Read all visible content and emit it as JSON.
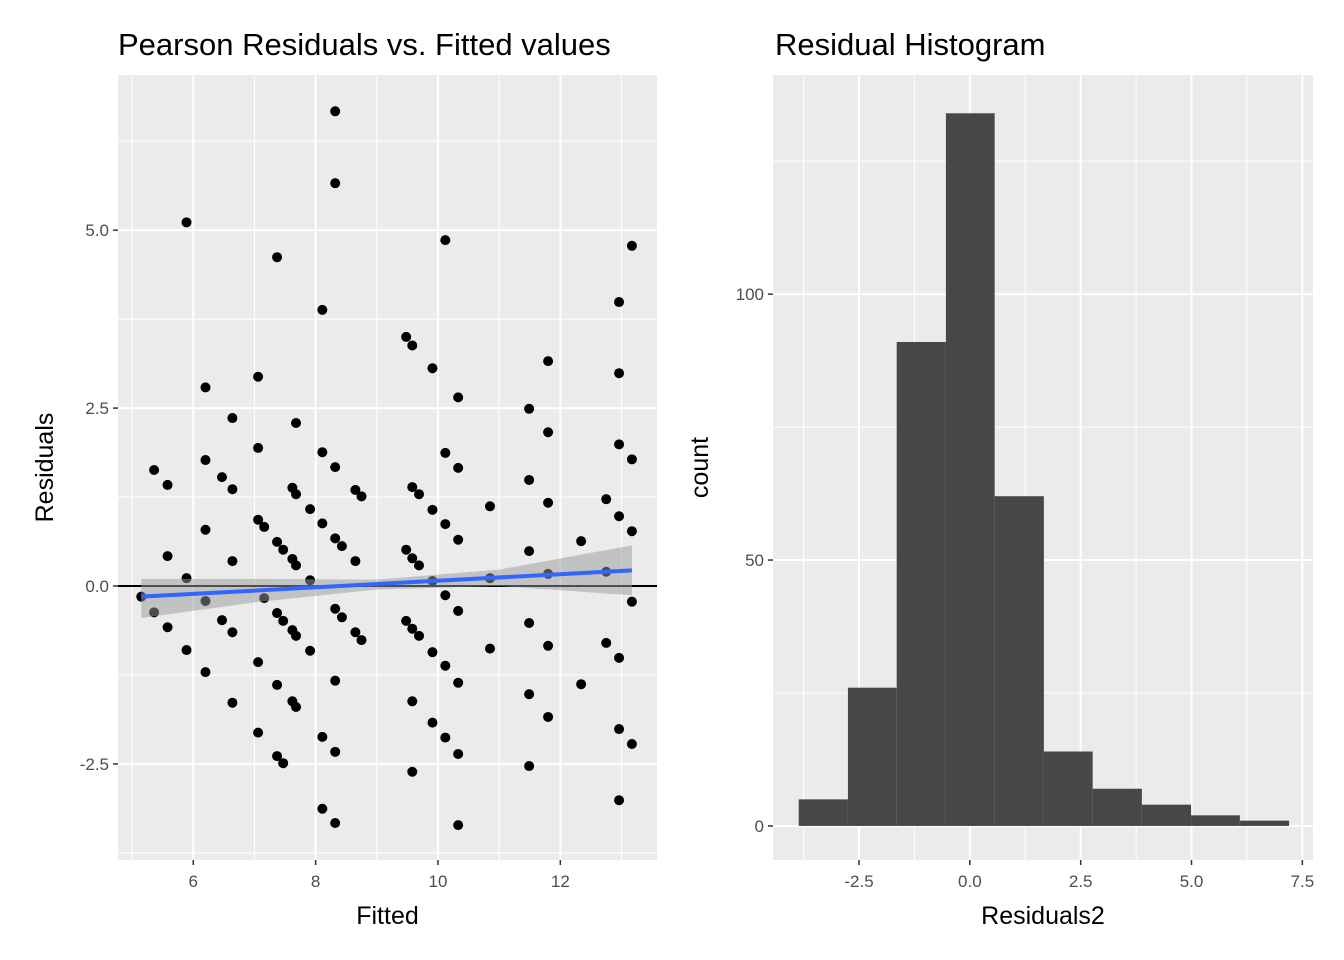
{
  "chart_data": [
    {
      "type": "scatter",
      "title": "Pearson Residuals vs. Fitted values",
      "xlabel": "Fitted",
      "ylabel": "Residuals",
      "xlim": [
        4.77,
        13.58
      ],
      "ylim": [
        -3.85,
        7.18
      ],
      "xticks": [
        6,
        8,
        10,
        12
      ],
      "xtick_labels": [
        "6",
        "8",
        "10",
        "12"
      ],
      "yticks": [
        -2.5,
        0,
        2.5,
        5
      ],
      "ytick_labels": [
        "-2.5",
        "0.0",
        "2.5",
        "5.0"
      ],
      "grid": true,
      "hline": 0,
      "smooth": {
        "method": "lm",
        "color": "#3366FF",
        "x": [
          5.15,
          13.17
        ],
        "y": [
          -0.15,
          0.22
        ],
        "band_x": [
          5.15,
          7.0,
          9.0,
          11.0,
          13.17
        ],
        "band_lower": [
          -0.45,
          -0.23,
          -0.05,
          0.0,
          -0.13
        ],
        "band_upper": [
          0.1,
          0.1,
          0.09,
          0.23,
          0.57
        ]
      },
      "points": [
        [
          5.15,
          -0.15
        ],
        [
          5.36,
          -0.37
        ],
        [
          5.36,
          1.63
        ],
        [
          5.58,
          0.42
        ],
        [
          5.58,
          1.42
        ],
        [
          5.58,
          -0.58
        ],
        [
          5.89,
          -0.9
        ],
        [
          5.89,
          5.11
        ],
        [
          5.89,
          0.11
        ],
        [
          6.2,
          2.79
        ],
        [
          6.2,
          1.77
        ],
        [
          6.2,
          0.79
        ],
        [
          6.2,
          -0.21
        ],
        [
          6.2,
          -1.21
        ],
        [
          6.47,
          1.53
        ],
        [
          6.47,
          -0.48
        ],
        [
          6.64,
          2.36
        ],
        [
          6.64,
          1.36
        ],
        [
          6.64,
          0.35
        ],
        [
          6.64,
          -0.65
        ],
        [
          6.64,
          -1.64
        ],
        [
          7.06,
          2.94
        ],
        [
          7.06,
          1.94
        ],
        [
          7.06,
          0.93
        ],
        [
          7.06,
          -1.07
        ],
        [
          7.06,
          -2.06
        ],
        [
          7.16,
          0.83
        ],
        [
          7.16,
          -0.17
        ],
        [
          7.37,
          4.62
        ],
        [
          7.37,
          0.62
        ],
        [
          7.37,
          -0.38
        ],
        [
          7.37,
          -1.39
        ],
        [
          7.37,
          -2.39
        ],
        [
          7.47,
          0.51
        ],
        [
          7.47,
          -0.49
        ],
        [
          7.47,
          -2.49
        ],
        [
          7.62,
          1.38
        ],
        [
          7.62,
          0.38
        ],
        [
          7.62,
          -0.62
        ],
        [
          7.62,
          -1.62
        ],
        [
          7.68,
          2.29
        ],
        [
          7.68,
          1.29
        ],
        [
          7.68,
          0.29
        ],
        [
          7.68,
          -0.7
        ],
        [
          7.68,
          -1.7
        ],
        [
          7.91,
          0.08
        ],
        [
          7.91,
          -0.91
        ],
        [
          7.91,
          1.08
        ],
        [
          8.11,
          3.88
        ],
        [
          8.11,
          1.88
        ],
        [
          8.11,
          0.88
        ],
        [
          8.11,
          -2.12
        ],
        [
          8.11,
          -3.13
        ],
        [
          8.32,
          6.67
        ],
        [
          8.32,
          5.66
        ],
        [
          8.32,
          1.67
        ],
        [
          8.32,
          0.67
        ],
        [
          8.32,
          -0.32
        ],
        [
          8.32,
          -1.33
        ],
        [
          8.32,
          -2.33
        ],
        [
          8.32,
          -3.33
        ],
        [
          8.43,
          0.56
        ],
        [
          8.43,
          -0.44
        ],
        [
          8.65,
          1.35
        ],
        [
          8.65,
          0.35
        ],
        [
          8.65,
          -0.65
        ],
        [
          8.75,
          1.26
        ],
        [
          8.75,
          -0.76
        ],
        [
          9.48,
          3.5
        ],
        [
          9.48,
          0.51
        ],
        [
          9.48,
          -0.49
        ],
        [
          9.58,
          3.38
        ],
        [
          9.58,
          1.39
        ],
        [
          9.58,
          0.39
        ],
        [
          9.58,
          -0.6
        ],
        [
          9.58,
          -1.62
        ],
        [
          9.58,
          -2.61
        ],
        [
          9.69,
          1.29
        ],
        [
          9.69,
          0.29
        ],
        [
          9.69,
          -0.7
        ],
        [
          9.91,
          3.06
        ],
        [
          9.91,
          1.07
        ],
        [
          9.91,
          0.07
        ],
        [
          9.91,
          -0.93
        ],
        [
          9.91,
          -1.92
        ],
        [
          10.12,
          4.86
        ],
        [
          10.12,
          1.87
        ],
        [
          10.12,
          0.87
        ],
        [
          10.12,
          -0.13
        ],
        [
          10.12,
          -1.12
        ],
        [
          10.12,
          -2.13
        ],
        [
          10.33,
          2.65
        ],
        [
          10.33,
          1.66
        ],
        [
          10.33,
          0.65
        ],
        [
          10.33,
          -0.35
        ],
        [
          10.33,
          -1.36
        ],
        [
          10.33,
          -2.36
        ],
        [
          10.33,
          -3.36
        ],
        [
          10.85,
          1.12
        ],
        [
          10.85,
          0.11
        ],
        [
          10.85,
          -0.88
        ],
        [
          11.49,
          2.49
        ],
        [
          11.49,
          1.49
        ],
        [
          11.49,
          0.49
        ],
        [
          11.49,
          -0.52
        ],
        [
          11.49,
          -1.52
        ],
        [
          11.49,
          -2.53
        ],
        [
          11.8,
          3.16
        ],
        [
          11.8,
          2.16
        ],
        [
          11.8,
          1.17
        ],
        [
          11.8,
          0.17
        ],
        [
          11.8,
          -0.84
        ],
        [
          11.8,
          -1.84
        ],
        [
          12.34,
          0.63
        ],
        [
          12.34,
          -1.38
        ],
        [
          12.75,
          1.22
        ],
        [
          12.75,
          0.2
        ],
        [
          12.75,
          -0.8
        ],
        [
          12.96,
          3.99
        ],
        [
          12.96,
          2.99
        ],
        [
          12.96,
          1.99
        ],
        [
          12.96,
          0.98
        ],
        [
          12.96,
          -1.01
        ],
        [
          12.96,
          -2.01
        ],
        [
          12.96,
          -3.01
        ],
        [
          13.17,
          4.78
        ],
        [
          13.17,
          1.78
        ],
        [
          13.17,
          0.77
        ],
        [
          13.17,
          -0.22
        ],
        [
          13.17,
          -2.22
        ]
      ]
    },
    {
      "type": "bar",
      "subtype": "histogram",
      "title": "Residual Histogram",
      "xlabel": "Residuals2",
      "ylabel": "count",
      "xlim": [
        -4.44,
        7.74
      ],
      "ylim": [
        -6.4,
        141.2
      ],
      "xticks": [
        -2.5,
        0,
        2.5,
        5,
        7.5
      ],
      "xtick_labels": [
        "-2.5",
        "0.0",
        "2.5",
        "5.0",
        "7.5"
      ],
      "yticks": [
        0,
        50,
        100
      ],
      "ytick_labels": [
        "0",
        "50",
        "100"
      ],
      "grid": true,
      "bar_color": "#474747",
      "bin_edges": [
        -3.86,
        -2.75,
        -1.65,
        -0.54,
        0.56,
        1.67,
        2.77,
        3.88,
        4.99,
        6.09,
        7.2
      ],
      "counts": [
        5,
        26,
        91,
        134,
        62,
        14,
        7,
        4,
        2,
        1
      ]
    }
  ]
}
